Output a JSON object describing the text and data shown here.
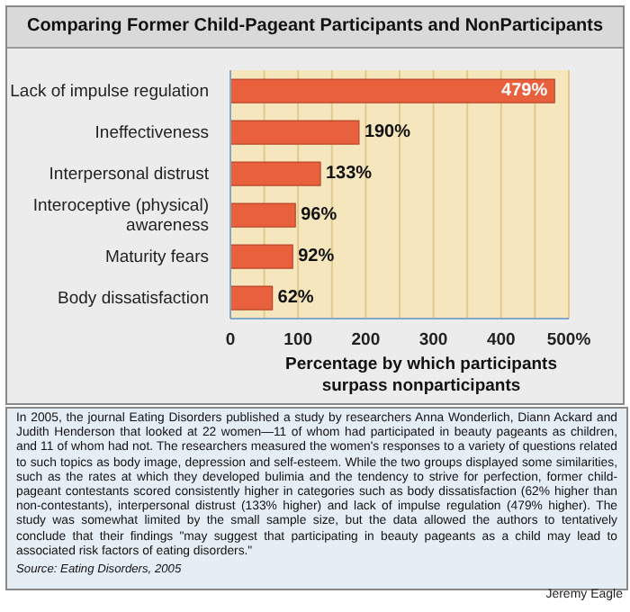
{
  "chart_data": {
    "type": "bar",
    "orientation": "horizontal",
    "title": "Comparing Former Child-Pageant Participants and NonParticipants",
    "categories": [
      "Lack of impulse regulation",
      "Ineffectiveness",
      "Interpersonal distrust",
      "Interoceptive (physical) awareness",
      "Maturity fears",
      "Body dissatisfaction"
    ],
    "values": [
      479,
      190,
      133,
      96,
      92,
      62
    ],
    "value_labels": [
      "479%",
      "190%",
      "133%",
      "96%",
      "92%",
      "62%"
    ],
    "color": "#e8603c",
    "xlabel": "Percentage by which participants surpass nonparticipants",
    "xlim": [
      0,
      500
    ],
    "xticks": [
      0,
      {
        "value": 50,
        "label": null
      },
      100,
      {
        "value": 150,
        "label": null
      },
      200,
      {
        "value": 250,
        "label": null
      },
      300,
      {
        "value": 350,
        "label": null
      },
      400,
      {
        "value": 450,
        "label": null
      },
      {
        "value": 500,
        "label": "500%"
      }
    ],
    "grid": "x",
    "annotations": [
      "In 2005, the journal Eating Disorders published a study by researchers Anna Wonderlich, Diann Ackard and Judith Henderson that looked at 22 women—11 of whom had participated in beauty pageants as children, and 11 of whom had not. The researchers measured the women's responses to a variety of questions related to such topics as body image, depression and self-esteem. While the two groups displayed some similarities, such as the rates at which they developed bulimia and the tendency to strive for perfection, former child-pageant contestants scored consistently higher in categories such as body dissatisfaction (62% higher than non-contestants), interpersonal distrust (133% higher) and lack of impulse regulation (479% higher). The study was somewhat limited by the small sample size, but the data allowed the authors to tentatively conclude that their findings \"may suggest that participating in beauty pageants as a child may lead to associated risk factors of eating disorders.\"",
      "Source: Eating Disorders, 2005",
      "Jeremy Eagle"
    ]
  }
}
